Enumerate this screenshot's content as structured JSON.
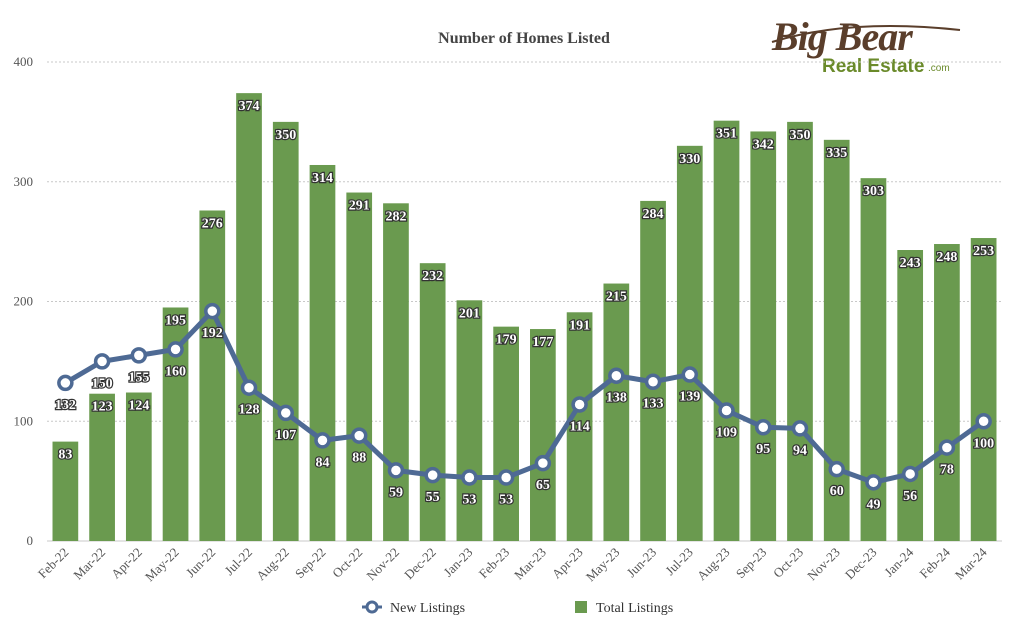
{
  "logo": {
    "name": "Big Bear",
    "sub": "Real Estate",
    "suffix": ".com"
  },
  "legend": {
    "new": "New Listings",
    "total": "Total Listings"
  },
  "colors": {
    "bar": "#6a9a4f",
    "line": "#4e6a94",
    "grid": "#c8c8c8"
  },
  "chart_data": {
    "type": "bar",
    "title": "Number of Homes Listed",
    "xlabel": "",
    "ylabel": "",
    "ylim": [
      0,
      400
    ],
    "yticks": [
      0,
      100,
      200,
      300,
      400
    ],
    "grid": true,
    "legend_position": "bottom",
    "categories": [
      "Feb-22",
      "Mar-22",
      "Apr-22",
      "May-22",
      "Jun-22",
      "Jul-22",
      "Aug-22",
      "Sep-22",
      "Oct-22",
      "Nov-22",
      "Dec-22",
      "Jan-23",
      "Feb-23",
      "Mar-23",
      "Apr-23",
      "May-23",
      "Jun-23",
      "Jul-23",
      "Aug-23",
      "Sep-23",
      "Oct-23",
      "Nov-23",
      "Dec-23",
      "Jan-24",
      "Feb-24",
      "Mar-24"
    ],
    "series": [
      {
        "name": "Total Listings",
        "type": "bar",
        "values": [
          83,
          123,
          124,
          195,
          276,
          374,
          350,
          314,
          291,
          282,
          232,
          201,
          179,
          177,
          191,
          215,
          284,
          330,
          351,
          342,
          350,
          335,
          303,
          243,
          248,
          253
        ]
      },
      {
        "name": "New Listings",
        "type": "line",
        "values": [
          132,
          150,
          155,
          160,
          192,
          128,
          107,
          84,
          88,
          59,
          55,
          53,
          53,
          65,
          114,
          138,
          133,
          139,
          109,
          95,
          94,
          60,
          49,
          56,
          78,
          100
        ]
      }
    ]
  }
}
